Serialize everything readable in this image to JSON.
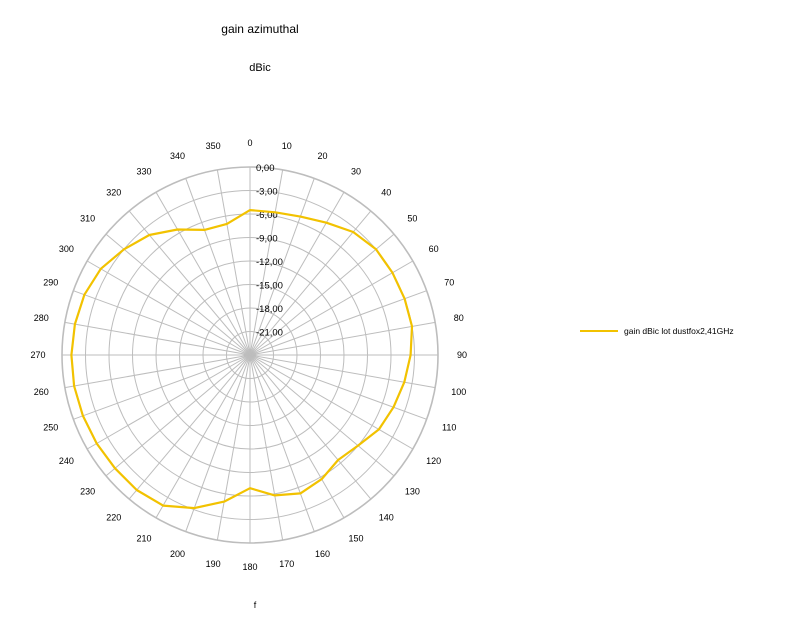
{
  "colors": {
    "series": "#f2c200",
    "grid": "#bdbdbd",
    "text": "#000000"
  },
  "chart_data": {
    "type": "line",
    "subtype": "polar-radar",
    "title": "gain azimuthal",
    "subtitle": "dBic",
    "bottom_label": "f",
    "grid": true,
    "legend_position": "right",
    "angle_labels": [
      "0",
      "10",
      "20",
      "30",
      "40",
      "50",
      "60",
      "70",
      "80",
      "90",
      "100",
      "110",
      "120",
      "130",
      "140",
      "150",
      "160",
      "170",
      "180",
      "190",
      "200",
      "210",
      "220",
      "230",
      "240",
      "250",
      "260",
      "270",
      "280",
      "290",
      "300",
      "310",
      "320",
      "330",
      "340",
      "350"
    ],
    "radial_labels": [
      "0,00",
      "-3,00",
      "-6,00",
      "-9,00",
      "-12,00",
      "-15,00",
      "-18,00",
      "-21,00"
    ],
    "radial_range": [
      -24,
      0
    ],
    "series": [
      {
        "name": "gain dBic  lot dustfox2,41GHz",
        "angles": [
          0,
          10,
          20,
          30,
          40,
          50,
          60,
          70,
          80,
          90,
          100,
          110,
          120,
          130,
          140,
          150,
          160,
          170,
          180,
          190,
          200,
          210,
          220,
          230,
          240,
          250,
          260,
          270,
          280,
          290,
          300,
          310,
          320,
          330,
          340,
          350
        ],
        "values": [
          -5.5,
          -5.5,
          -5.2,
          -4.5,
          -3.5,
          -3.0,
          -3.0,
          -3.0,
          -3.0,
          -3.5,
          -4.0,
          -4.5,
          -5.0,
          -6.0,
          -6.5,
          -5.7,
          -5.2,
          -5.8,
          -7.0,
          -5.0,
          -3.2,
          -1.8,
          -1.5,
          -1.5,
          -1.4,
          -1.3,
          -1.2,
          -1.2,
          -1.3,
          -1.5,
          -2.0,
          -3.0,
          -4.0,
          -5.5,
          -7.0,
          -7.0
        ]
      }
    ]
  }
}
